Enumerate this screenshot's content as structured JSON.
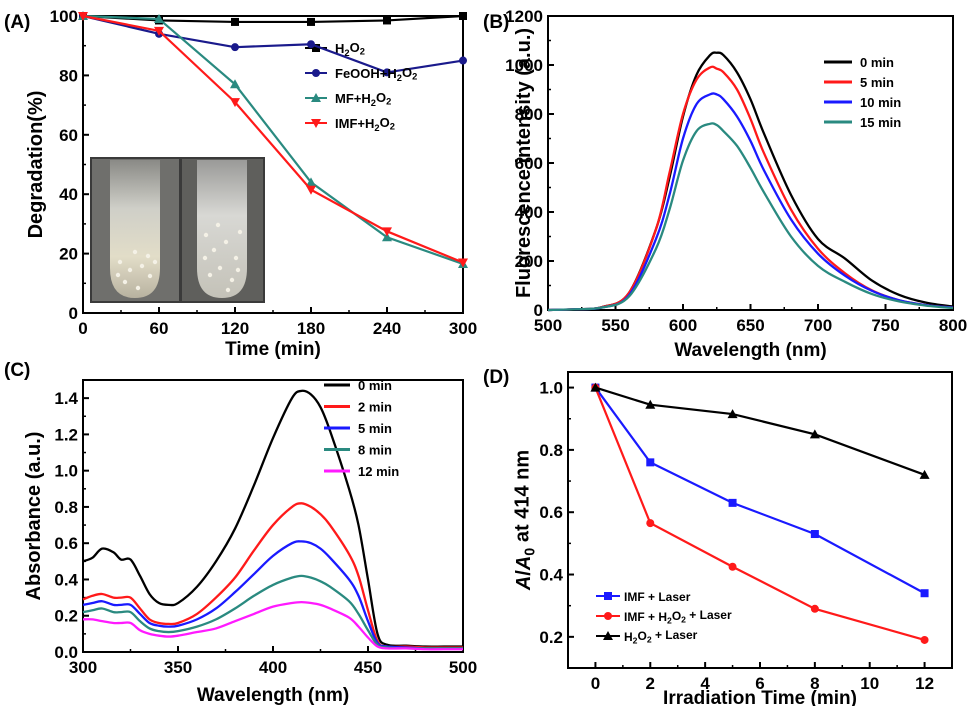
{
  "chart_data": [
    {
      "panel": "(A)",
      "type": "line",
      "xlabel": "Time (min)",
      "ylabel": "Degradation(%)",
      "xlim": [
        0,
        300
      ],
      "ylim": [
        0,
        100
      ],
      "xticks": [
        0,
        60,
        120,
        180,
        240,
        300
      ],
      "yticks": [
        0,
        20,
        40,
        60,
        80,
        100
      ],
      "legend_position": "right-middle",
      "inset_photo": "two test tubes",
      "series": [
        {
          "name": "H2O2",
          "color": "#000000",
          "marker": "square",
          "x": [
            0,
            60,
            120,
            180,
            240,
            300
          ],
          "y": [
            100,
            98.5,
            98,
            98,
            98.5,
            100
          ]
        },
        {
          "name": "FeOOH+H2O2",
          "color": "#1a1a8c",
          "marker": "circle",
          "x": [
            0,
            60,
            120,
            180,
            240,
            300
          ],
          "y": [
            100,
            94,
            89.5,
            90.5,
            81,
            85
          ]
        },
        {
          "name": "MF+H2O2",
          "color": "#2a8a80",
          "marker": "triangle-up",
          "x": [
            0,
            60,
            120,
            180,
            240,
            300
          ],
          "y": [
            100,
            99,
            77,
            44,
            25.5,
            16.5
          ]
        },
        {
          "name": "IMF+H2O2",
          "color": "#ff1a1a",
          "marker": "triangle-down",
          "x": [
            0,
            60,
            120,
            180,
            240,
            300
          ],
          "y": [
            100,
            95,
            71,
            41.5,
            27.5,
            17
          ]
        }
      ]
    },
    {
      "panel": "(B)",
      "type": "line",
      "xlabel": "Wavelength (nm)",
      "ylabel": "Fluorescence intensity (a.u.)",
      "xlim": [
        500,
        800
      ],
      "ylim": [
        0,
        1200
      ],
      "xticks": [
        500,
        550,
        600,
        650,
        700,
        750,
        800
      ],
      "yticks": [
        0,
        200,
        400,
        600,
        800,
        1000,
        1200
      ],
      "legend_position": "top-right",
      "series": [
        {
          "name": "0 min",
          "color": "#000000",
          "x": [
            500,
            520,
            540,
            560,
            580,
            590,
            600,
            610,
            620,
            625,
            630,
            640,
            650,
            660,
            680,
            700,
            720,
            740,
            760,
            780,
            800
          ],
          "y": [
            0,
            3,
            12,
            70,
            330,
            540,
            790,
            960,
            1040,
            1050,
            1040,
            970,
            860,
            720,
            470,
            290,
            210,
            120,
            62,
            30,
            14
          ]
        },
        {
          "name": "5 min",
          "color": "#ff1a1a",
          "x": [
            500,
            520,
            540,
            560,
            580,
            590,
            600,
            610,
            620,
            625,
            630,
            640,
            650,
            660,
            680,
            700,
            720,
            740,
            760,
            780,
            800
          ],
          "y": [
            0,
            3,
            12,
            70,
            330,
            560,
            800,
            940,
            990,
            985,
            970,
            900,
            780,
            640,
            410,
            250,
            150,
            80,
            40,
            20,
            10
          ]
        },
        {
          "name": "10 min",
          "color": "#1a1aff",
          "x": [
            500,
            520,
            540,
            560,
            580,
            590,
            600,
            610,
            620,
            625,
            630,
            640,
            650,
            660,
            680,
            700,
            720,
            740,
            760,
            780,
            800
          ],
          "y": [
            0,
            3,
            10,
            60,
            290,
            470,
            700,
            840,
            880,
            880,
            860,
            790,
            690,
            570,
            370,
            230,
            140,
            78,
            40,
            20,
            10
          ]
        },
        {
          "name": "15 min",
          "color": "#2a8a80",
          "x": [
            500,
            520,
            540,
            560,
            580,
            590,
            600,
            610,
            620,
            625,
            630,
            640,
            650,
            660,
            680,
            700,
            720,
            740,
            760,
            780,
            800
          ],
          "y": [
            0,
            3,
            10,
            55,
            250,
            410,
            610,
            730,
            760,
            755,
            730,
            670,
            580,
            480,
            300,
            180,
            115,
            65,
            35,
            18,
            8
          ]
        }
      ]
    },
    {
      "panel": "(C)",
      "type": "line",
      "xlabel": "Wavelength (nm)",
      "ylabel": "Absorbance (a.u.)",
      "xlim": [
        300,
        500
      ],
      "ylim": [
        0,
        1.5
      ],
      "xticks": [
        300,
        350,
        400,
        450,
        500
      ],
      "yticks": [
        0.0,
        0.2,
        0.4,
        0.6,
        0.8,
        1.0,
        1.2,
        1.4
      ],
      "legend_position": "top-right",
      "series": [
        {
          "name": "0 min",
          "color": "#000000",
          "x": [
            300,
            305,
            310,
            316,
            320,
            325,
            330,
            335,
            340,
            345,
            350,
            360,
            370,
            380,
            390,
            400,
            410,
            415,
            420,
            425,
            430,
            440,
            445,
            450,
            455,
            460,
            470,
            480,
            490,
            500
          ],
          "y": [
            0.5,
            0.52,
            0.57,
            0.55,
            0.51,
            0.51,
            0.42,
            0.32,
            0.27,
            0.26,
            0.27,
            0.36,
            0.5,
            0.68,
            0.92,
            1.18,
            1.4,
            1.44,
            1.42,
            1.35,
            1.22,
            0.9,
            0.7,
            0.4,
            0.1,
            0.04,
            0.035,
            0.03,
            0.03,
            0.03
          ]
        },
        {
          "name": "2 min",
          "color": "#ff1a1a",
          "x": [
            300,
            305,
            310,
            316,
            320,
            325,
            330,
            335,
            340,
            345,
            350,
            360,
            370,
            380,
            390,
            400,
            410,
            415,
            420,
            425,
            430,
            440,
            445,
            450,
            455,
            460,
            470,
            480,
            490,
            500
          ],
          "y": [
            0.29,
            0.31,
            0.32,
            0.3,
            0.3,
            0.3,
            0.24,
            0.18,
            0.16,
            0.155,
            0.16,
            0.21,
            0.3,
            0.41,
            0.56,
            0.7,
            0.8,
            0.82,
            0.8,
            0.76,
            0.7,
            0.54,
            0.42,
            0.23,
            0.06,
            0.03,
            0.03,
            0.025,
            0.025,
            0.025
          ]
        },
        {
          "name": "5 min",
          "color": "#1a1aff",
          "x": [
            300,
            305,
            310,
            316,
            320,
            325,
            330,
            335,
            340,
            345,
            350,
            360,
            370,
            380,
            390,
            400,
            410,
            415,
            420,
            425,
            430,
            440,
            445,
            450,
            455,
            460,
            470,
            480,
            490,
            500
          ],
          "y": [
            0.26,
            0.27,
            0.28,
            0.26,
            0.26,
            0.26,
            0.21,
            0.16,
            0.145,
            0.14,
            0.145,
            0.18,
            0.24,
            0.33,
            0.43,
            0.53,
            0.6,
            0.61,
            0.6,
            0.57,
            0.52,
            0.4,
            0.31,
            0.17,
            0.05,
            0.03,
            0.025,
            0.02,
            0.02,
            0.02
          ]
        },
        {
          "name": "8 min",
          "color": "#2a8a80",
          "x": [
            300,
            305,
            310,
            316,
            320,
            325,
            330,
            335,
            340,
            345,
            350,
            360,
            370,
            380,
            390,
            400,
            410,
            415,
            420,
            425,
            430,
            440,
            445,
            450,
            455,
            460,
            470,
            480,
            490,
            500
          ],
          "y": [
            0.22,
            0.23,
            0.24,
            0.22,
            0.22,
            0.22,
            0.17,
            0.13,
            0.115,
            0.11,
            0.115,
            0.14,
            0.18,
            0.24,
            0.31,
            0.37,
            0.41,
            0.42,
            0.41,
            0.39,
            0.36,
            0.28,
            0.21,
            0.12,
            0.04,
            0.025,
            0.02,
            0.02,
            0.02,
            0.02
          ]
        },
        {
          "name": "12 min",
          "color": "#ff1aff",
          "x": [
            300,
            305,
            310,
            316,
            320,
            325,
            330,
            335,
            340,
            345,
            350,
            360,
            370,
            380,
            390,
            400,
            410,
            415,
            420,
            425,
            430,
            440,
            445,
            450,
            455,
            460,
            470,
            480,
            490,
            500
          ],
          "y": [
            0.18,
            0.18,
            0.17,
            0.16,
            0.16,
            0.16,
            0.12,
            0.1,
            0.09,
            0.085,
            0.09,
            0.11,
            0.13,
            0.17,
            0.21,
            0.25,
            0.27,
            0.275,
            0.27,
            0.26,
            0.24,
            0.19,
            0.14,
            0.08,
            0.03,
            0.02,
            0.02,
            0.015,
            0.015,
            0.015
          ]
        }
      ]
    },
    {
      "panel": "(D)",
      "type": "line",
      "xlabel": "Irradiation Time (min)",
      "ylabel": "A/A0 at 414 nm",
      "xlim": [
        -1,
        13
      ],
      "ylim": [
        0.1,
        1.05
      ],
      "xticks": [
        0,
        2,
        4,
        6,
        8,
        10,
        12
      ],
      "yticks": [
        0.2,
        0.4,
        0.6,
        0.8,
        1.0
      ],
      "legend_position": "bottom-left",
      "series": [
        {
          "name": "IMF + Laser",
          "color": "#1a1aff",
          "marker": "square",
          "x": [
            0,
            2,
            5,
            8,
            12
          ],
          "y": [
            1.0,
            0.76,
            0.63,
            0.53,
            0.34
          ]
        },
        {
          "name": "IMF + H2O2 + Laser",
          "color": "#ff1a1a",
          "marker": "circle",
          "x": [
            0,
            2,
            5,
            8,
            12
          ],
          "y": [
            1.0,
            0.565,
            0.425,
            0.29,
            0.19
          ]
        },
        {
          "name": "H2O2 + Laser",
          "color": "#000000",
          "marker": "triangle-up",
          "x": [
            0,
            2,
            5,
            8,
            12
          ],
          "y": [
            1.0,
            0.945,
            0.915,
            0.85,
            0.72
          ]
        }
      ]
    }
  ]
}
